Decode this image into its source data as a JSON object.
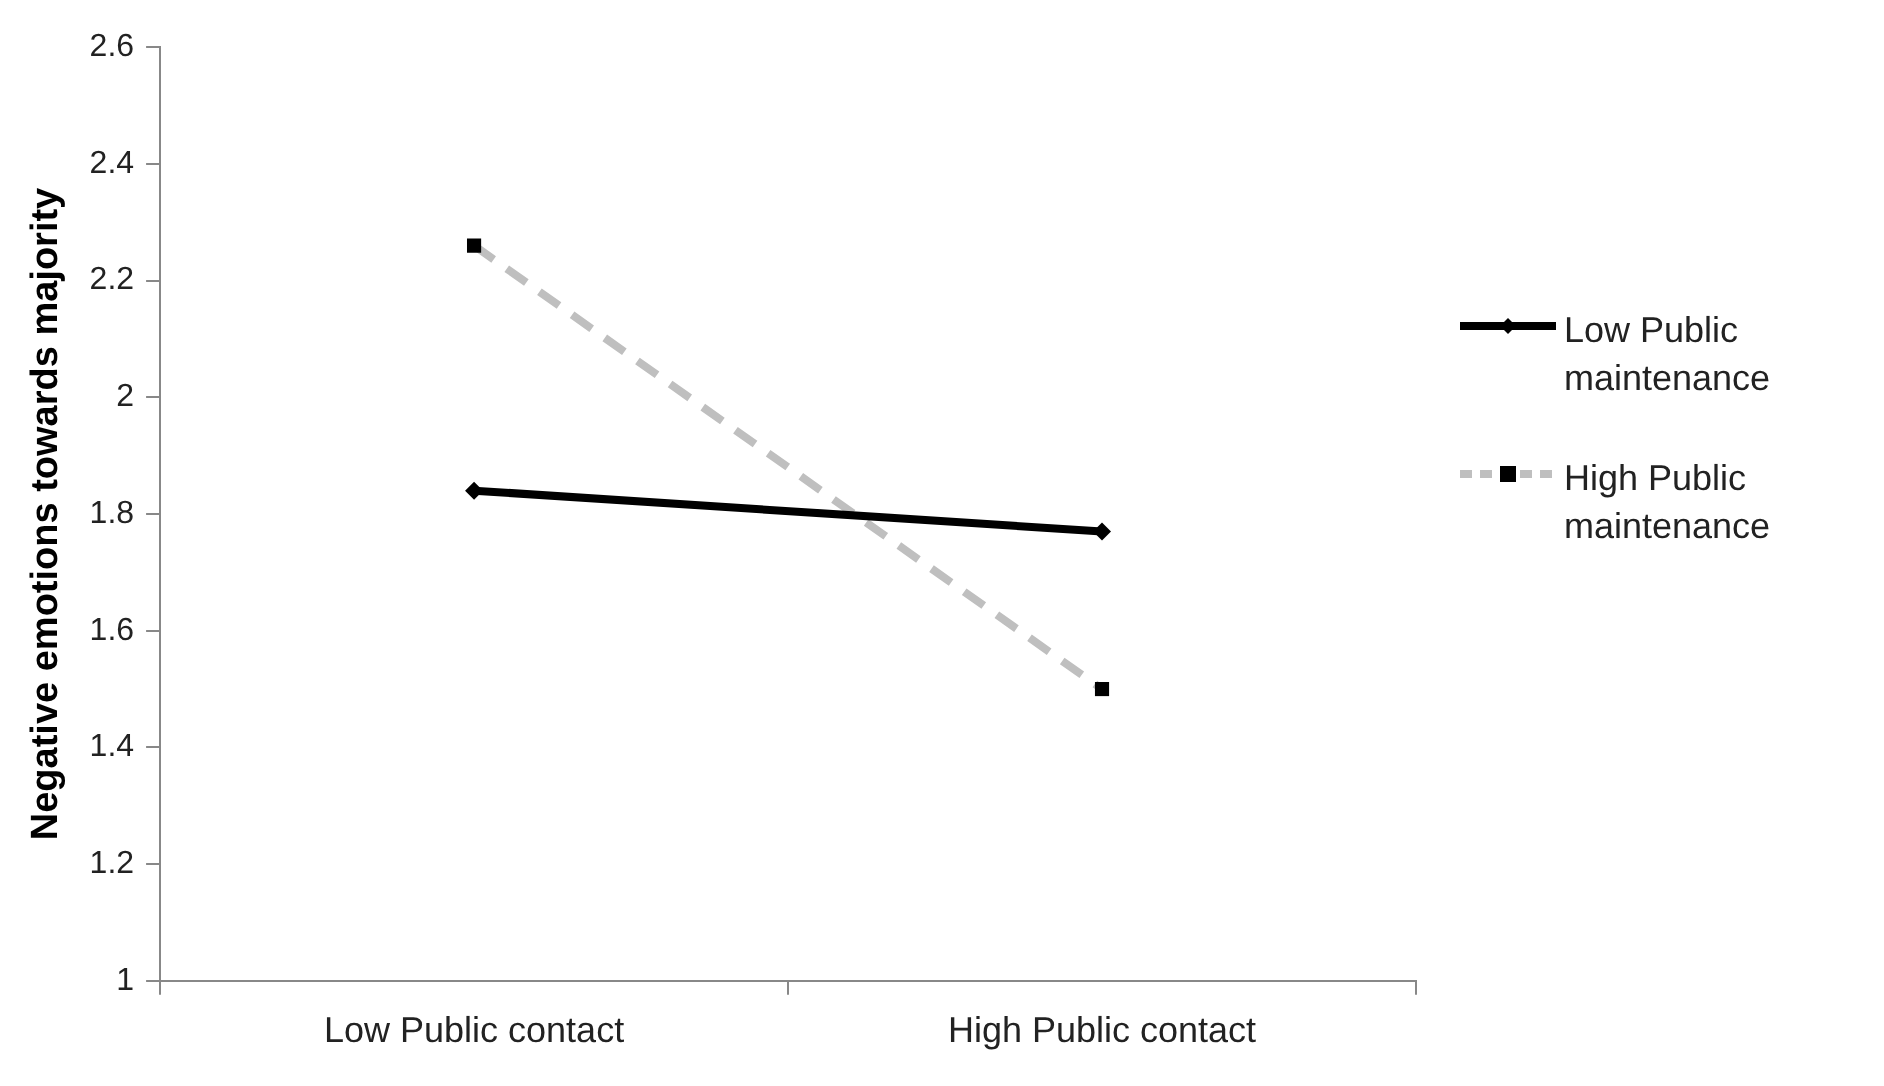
{
  "chart_data": {
    "type": "line",
    "ylabel": "Negative emotions towards majority",
    "categories": [
      "Low Public contact",
      "High Public contact"
    ],
    "series": [
      {
        "name": "Low Public maintenance",
        "color": "#000000",
        "values": [
          1.84,
          1.77
        ],
        "marker": "diamond",
        "line_style": "solid"
      },
      {
        "name": "High Public maintenance",
        "color": "#bfbfbf",
        "values": [
          2.26,
          1.5
        ],
        "marker": "square",
        "line_style": "dashed"
      }
    ],
    "ylim": [
      1,
      2.6
    ],
    "yticks": [
      1,
      1.2,
      1.4,
      1.6,
      1.8,
      2,
      2.2,
      2.4,
      2.6
    ],
    "grid": false,
    "legend": "right"
  }
}
